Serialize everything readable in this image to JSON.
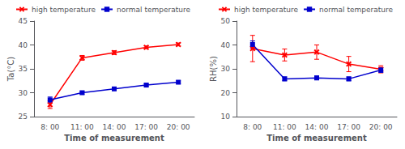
{
  "chart_data": [
    {
      "type": "line",
      "xlabel": "Time of measurement",
      "ylabel": "Ta(°C)",
      "categories": [
        "8: 00",
        "11: 00",
        "14: 00",
        "17: 00",
        "20: 00"
      ],
      "series": [
        {
          "name": "high temperature",
          "color": "#ff0000",
          "marker": "x",
          "values": [
            27.5,
            37.3,
            38.4,
            39.5,
            40.1
          ],
          "errors": [
            0.8,
            0.5,
            0.4,
            0.3,
            0.3
          ]
        },
        {
          "name": "normal temperature",
          "color": "#0000cd",
          "marker": "square",
          "values": [
            28.5,
            30.0,
            30.8,
            31.6,
            32.2
          ],
          "errors": [
            0.6,
            0.3,
            0.3,
            0.3,
            0.3
          ]
        }
      ],
      "ylim": [
        25,
        45
      ],
      "yticks": [
        25,
        30,
        35,
        40,
        45
      ],
      "grid": false,
      "legend": "upper right"
    },
    {
      "type": "line",
      "xlabel": "Time of measurement",
      "ylabel": "RH(%)",
      "categories": [
        "8: 00",
        "11: 00",
        "14: 00",
        "17: 00",
        "20: 00"
      ],
      "series": [
        {
          "name": "high temperature",
          "color": "#ff0000",
          "marker": "x",
          "values": [
            38.5,
            35.8,
            37.0,
            32.0,
            29.8
          ],
          "errors": [
            5.5,
            2.5,
            3.0,
            3.2,
            1.5
          ]
        },
        {
          "name": "normal temperature",
          "color": "#0000cd",
          "marker": "square",
          "values": [
            40.2,
            25.8,
            26.2,
            25.8,
            29.5
          ],
          "errors": [
            1.5,
            0.8,
            0.8,
            0.8,
            1.0
          ]
        }
      ],
      "ylim": [
        10,
        50
      ],
      "yticks": [
        10,
        20,
        30,
        40,
        50
      ],
      "grid": false,
      "legend": "upper right"
    }
  ]
}
